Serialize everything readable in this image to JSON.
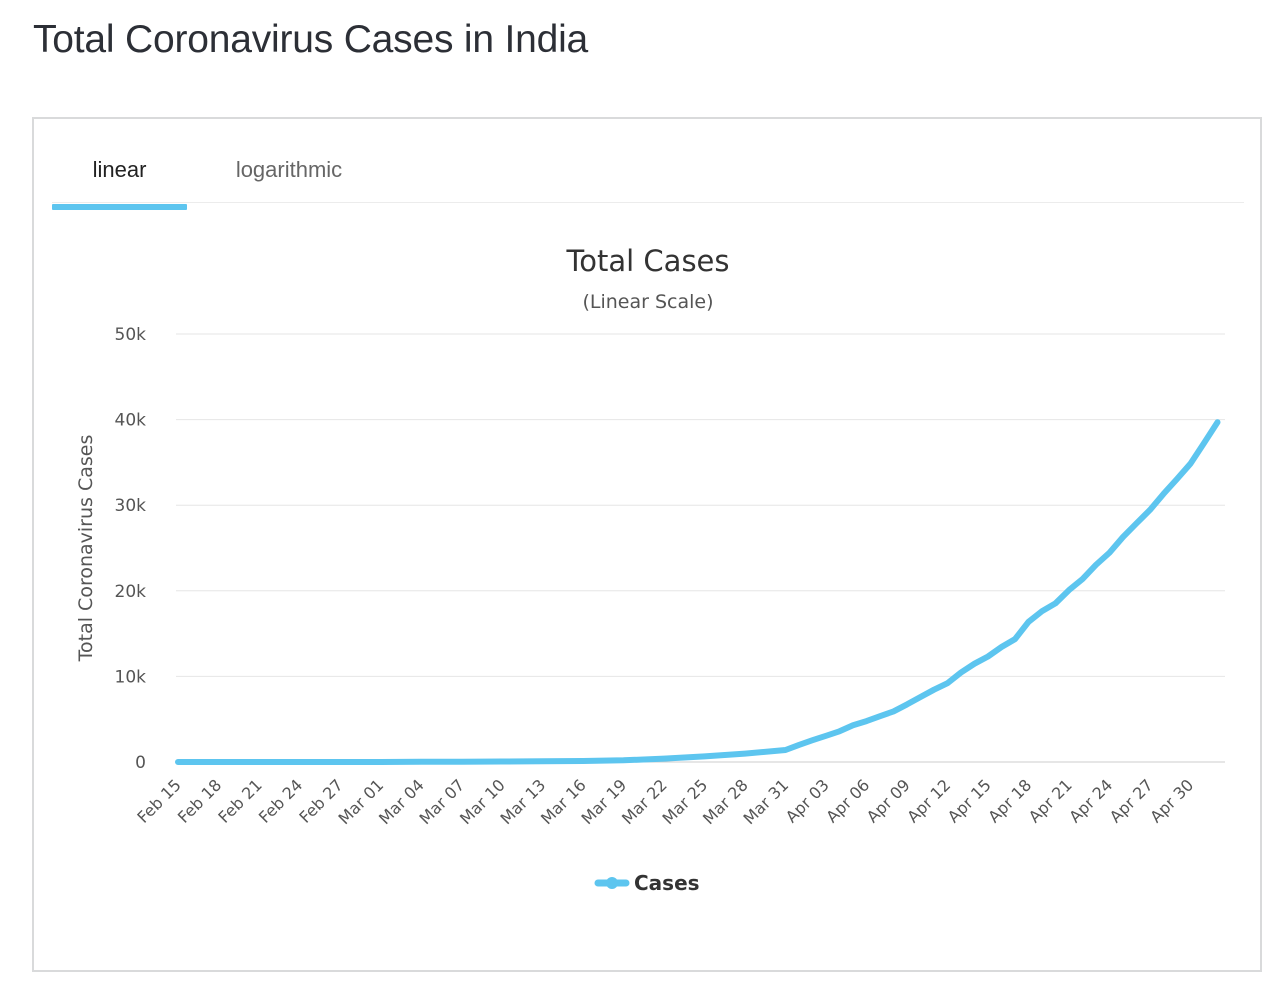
{
  "page": {
    "title": "Total Coronavirus Cases in India"
  },
  "tabs": [
    {
      "label": "linear",
      "active": true
    },
    {
      "label": "logarithmic",
      "active": false
    }
  ],
  "colors": {
    "series": "#5dc5ef",
    "grid": "#e6e6e6",
    "tab_active": "#5dc5ef"
  },
  "chart_data": {
    "type": "line",
    "title": "Total Cases",
    "subtitle": "(Linear Scale)",
    "ylabel": "Total Coronavirus Cases",
    "xlabel": "",
    "ylim": [
      0,
      50000
    ],
    "yticks": [
      {
        "value": 0,
        "label": "0"
      },
      {
        "value": 10000,
        "label": "10k"
      },
      {
        "value": 20000,
        "label": "20k"
      },
      {
        "value": 30000,
        "label": "30k"
      },
      {
        "value": 40000,
        "label": "40k"
      },
      {
        "value": 50000,
        "label": "50k"
      }
    ],
    "xtick_labels": [
      "Feb 15",
      "Feb 18",
      "Feb 21",
      "Feb 24",
      "Feb 27",
      "Mar 01",
      "Mar 04",
      "Mar 07",
      "Mar 10",
      "Mar 13",
      "Mar 16",
      "Mar 19",
      "Mar 22",
      "Mar 25",
      "Mar 28",
      "Mar 31",
      "Apr 03",
      "Apr 06",
      "Apr 09",
      "Apr 12",
      "Apr 15",
      "Apr 18",
      "Apr 21",
      "Apr 24",
      "Apr 27",
      "Apr 30"
    ],
    "grid": true,
    "legend": {
      "position": "bottom",
      "entries": [
        "Cases"
      ]
    },
    "series": [
      {
        "name": "Cases",
        "x": [
          "Feb 15",
          "Feb 18",
          "Feb 21",
          "Feb 24",
          "Feb 27",
          "Mar 01",
          "Mar 04",
          "Mar 07",
          "Mar 10",
          "Mar 13",
          "Mar 16",
          "Mar 19",
          "Mar 22",
          "Mar 25",
          "Mar 28",
          "Mar 31",
          "Apr 01",
          "Apr 02",
          "Apr 03",
          "Apr 04",
          "Apr 05",
          "Apr 06",
          "Apr 07",
          "Apr 08",
          "Apr 09",
          "Apr 10",
          "Apr 11",
          "Apr 12",
          "Apr 13",
          "Apr 14",
          "Apr 15",
          "Apr 16",
          "Apr 17",
          "Apr 18",
          "Apr 19",
          "Apr 20",
          "Apr 21",
          "Apr 22",
          "Apr 23",
          "Apr 24",
          "Apr 25",
          "Apr 26",
          "Apr 27",
          "Apr 28",
          "Apr 29",
          "Apr 30",
          "May 01",
          "May 02"
        ],
        "values": [
          3,
          3,
          3,
          3,
          3,
          3,
          29,
          34,
          56,
          82,
          119,
          196,
          396,
          657,
          987,
          1397,
          1998,
          2543,
          3059,
          3588,
          4289,
          4778,
          5351,
          5916,
          6725,
          7598,
          8446,
          9205,
          10453,
          11487,
          12322,
          13430,
          14352,
          16365,
          17615,
          18539,
          20080,
          21370,
          23039,
          24447,
          26283,
          27890,
          29451,
          31324,
          33062,
          34863,
          37257,
          39699
        ]
      }
    ]
  }
}
